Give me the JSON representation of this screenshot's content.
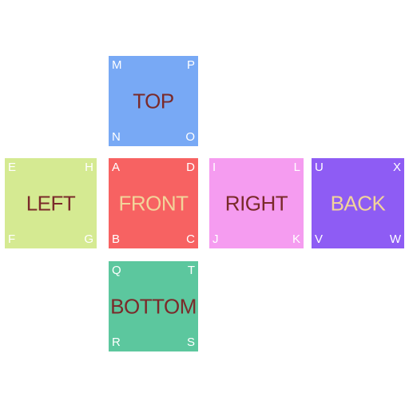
{
  "faces": {
    "top": {
      "label": "TOP",
      "corners": {
        "tl": "M",
        "tr": "P",
        "bl": "N",
        "br": "O"
      },
      "color": "#78a9f5",
      "text_color": "#7a2a2a"
    },
    "left": {
      "label": "LEFT",
      "corners": {
        "tl": "E",
        "tr": "H",
        "bl": "F",
        "br": "G"
      },
      "color": "#d5ea92",
      "text_color": "#7a2a2a"
    },
    "front": {
      "label": "FRONT",
      "corners": {
        "tl": "A",
        "tr": "D",
        "bl": "B",
        "br": "C"
      },
      "color": "#f76262",
      "text_color": "#f2d49a"
    },
    "right": {
      "label": "RIGHT",
      "corners": {
        "tl": "I",
        "tr": "L",
        "bl": "J",
        "br": "K"
      },
      "color": "#f59cf0",
      "text_color": "#7a2a2a"
    },
    "back": {
      "label": "BACK",
      "corners": {
        "tl": "U",
        "tr": "X",
        "bl": "V",
        "br": "W"
      },
      "color": "#8e5cf4",
      "text_color": "#f2d49a"
    },
    "bottom": {
      "label": "BOTTOM",
      "corners": {
        "tl": "Q",
        "tr": "T",
        "bl": "R",
        "br": "S"
      },
      "color": "#5cc79e",
      "text_color": "#7a2a2a"
    }
  }
}
